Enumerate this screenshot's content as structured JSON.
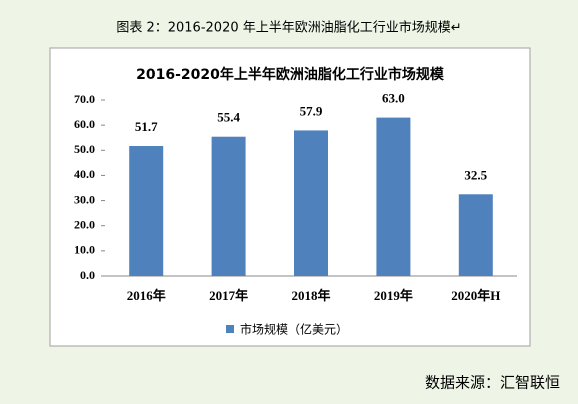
{
  "caption": "图表 2：2016-2020 年上半年欧洲油脂化工行业市场规模↵",
  "source": "数据来源：汇智联恒",
  "chart_data": {
    "type": "bar",
    "title": "2016-2020年上半年欧洲油脂化工行业市场规模",
    "categories": [
      "2016年",
      "2017年",
      "2018年",
      "2019年",
      "2020年H"
    ],
    "series": [
      {
        "name": "市场规模（亿美元）",
        "color": "#4f81bd",
        "values": [
          51.7,
          55.4,
          57.9,
          63,
          32.5
        ],
        "value_labels": [
          "51.7",
          "55.4",
          "57.9",
          "63.0",
          "32.5"
        ]
      }
    ],
    "ylim": [
      0,
      70
    ],
    "yticks": [
      {
        "value": 0,
        "label": "0.0"
      },
      {
        "value": 10,
        "label": "10.0"
      },
      {
        "value": 20,
        "label": "20.0"
      },
      {
        "value": 30,
        "label": "30.0"
      },
      {
        "value": 40,
        "label": "40.0"
      },
      {
        "value": 50,
        "label": "50.0"
      },
      {
        "value": 60,
        "label": "60.0"
      },
      {
        "value": 70,
        "label": "70.0"
      }
    ],
    "grid": false,
    "legend": "bottom"
  }
}
